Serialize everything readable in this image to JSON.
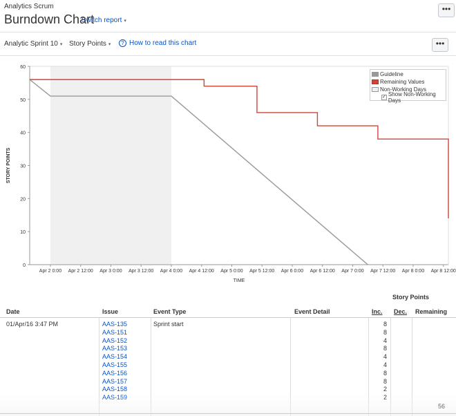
{
  "header": {
    "project_name": "Analytics Scrum",
    "title": "Burndown Chart",
    "switch_report": "Switch report",
    "more_label": "•••"
  },
  "toolbar": {
    "sprint": "Analytic Sprint 10",
    "estimation": "Story Points",
    "help_link": "How to read this chart",
    "more_label": "•••"
  },
  "legend": {
    "guideline": "Guideline",
    "remaining": "Remaining Values",
    "non_working": "Non-Working Days",
    "show_non_working": "Show Non-Working Days",
    "show_non_working_checked": true
  },
  "chart_data": {
    "type": "line",
    "xlabel": "TIME",
    "ylabel": "STORY POINTS",
    "ylim": [
      0,
      60
    ],
    "yticks": [
      0,
      10,
      20,
      30,
      40,
      50,
      60
    ],
    "xticks": [
      "Apr 2 0:00",
      "Apr 2 12:00",
      "Apr 3 0:00",
      "Apr 3 12:00",
      "Apr 4 0:00",
      "Apr 4 12:00",
      "Apr 5 0:00",
      "Apr 5 12:00",
      "Apr 6 0:00",
      "Apr 6 12:00",
      "Apr 7 0:00",
      "Apr 7 12:00",
      "Apr 8 0:00",
      "Apr 8 12:00"
    ],
    "x_start": "Apr 1 15:47",
    "x_end": "Apr 8 14:00",
    "non_working_period": [
      "Apr 2 0:00",
      "Apr 4 0:00"
    ],
    "series": [
      {
        "name": "Guideline",
        "color": "#999999",
        "points": [
          [
            "Apr 1 15:47",
            56
          ],
          [
            "Apr 2 0:00",
            51
          ],
          [
            "Apr 4 0:00",
            51
          ],
          [
            "Apr 7 6:00",
            0
          ]
        ]
      },
      {
        "name": "Remaining Values",
        "color": "#d04437",
        "step": true,
        "points": [
          [
            "Apr 1 15:47",
            56
          ],
          [
            "Apr 4 13:00",
            56
          ],
          [
            "Apr 4 13:00",
            54
          ],
          [
            "Apr 5 10:00",
            54
          ],
          [
            "Apr 5 10:00",
            46
          ],
          [
            "Apr 6 10:00",
            46
          ],
          [
            "Apr 6 10:00",
            42
          ],
          [
            "Apr 7 10:00",
            42
          ],
          [
            "Apr 7 10:00",
            38
          ],
          [
            "Apr 8 14:00",
            38
          ],
          [
            "Apr 8 14:00",
            30
          ],
          [
            "Apr 8 14:00",
            14
          ]
        ]
      }
    ],
    "grid": false,
    "legend_position": "top-right"
  },
  "table": {
    "group_header": "Story Points",
    "columns": {
      "date": "Date",
      "issue": "Issue",
      "event_type": "Event Type",
      "event_detail": "Event Detail",
      "inc": "Inc.",
      "dec": "Dec.",
      "remaining": "Remaining"
    },
    "rows": [
      {
        "date": "01/Apr/16 3:47 PM",
        "event_type": "Sprint start",
        "issues": [
          "AAS-135",
          "AAS-151",
          "AAS-152",
          "AAS-153",
          "AAS-154",
          "AAS-155",
          "AAS-156",
          "AAS-157",
          "AAS-158",
          "AAS-159"
        ],
        "inc": [
          "8",
          "8",
          "4",
          "8",
          "4",
          "4",
          "8",
          "8",
          "2",
          "2"
        ],
        "remaining": "56"
      }
    ]
  }
}
